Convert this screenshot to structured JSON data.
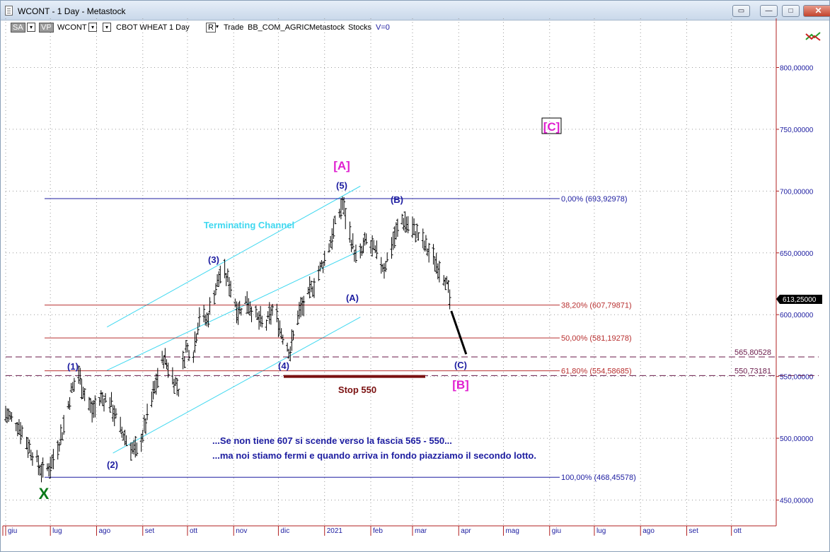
{
  "window": {
    "title": "WCONT - 1 Day - Metastock",
    "buttons": {
      "restore": "▭",
      "minimize": "—",
      "maximize": "□",
      "close": "✕"
    }
  },
  "toolbar": {
    "sa_label": "SA",
    "vp_label": "VP",
    "symbol": "WCONT",
    "name": "CBOT WHEAT",
    "period": "1 Day",
    "r_label": "R",
    "mode": "Trade",
    "list": "BB_COM_AGRIC",
    "source": "Metastock",
    "category": "Stocks",
    "v_value": "V=0"
  },
  "chart_data": {
    "type": "bar",
    "title": "",
    "y_axis": {
      "min": 430,
      "max": 850,
      "ticks": [
        "450,00000",
        "500,00000",
        "550,00000",
        "600,00000",
        "650,00000",
        "700,00000",
        "750,00000",
        "800,00000"
      ],
      "tick_values": [
        450,
        500,
        550,
        600,
        650,
        700,
        750,
        800
      ],
      "last_price_label": "613,25000",
      "last_price": 613.25
    },
    "x_axis": {
      "months": [
        "giu",
        "lug",
        "ago",
        "set",
        "ott",
        "nov",
        "dic",
        "2021",
        "feb",
        "mar",
        "apr",
        "mag",
        "giu",
        "lug",
        "ago",
        "set",
        "ott"
      ],
      "month_dates": [
        "2020-06-01",
        "2020-07-01",
        "2020-08-01",
        "2020-09-01",
        "2020-10-01",
        "2020-11-01",
        "2020-12-01",
        "2021-01-01",
        "2021-02-01",
        "2021-03-01",
        "2021-04-01",
        "2021-05-01",
        "2021-06-01",
        "2021-07-01",
        "2021-08-01",
        "2021-09-01",
        "2021-10-01"
      ],
      "start": "2020-06-01",
      "end": "2021-11-01"
    },
    "price_path": [
      [
        "2020-06-01",
        520
      ],
      [
        "2020-06-10",
        510
      ],
      [
        "2020-06-18",
        490
      ],
      [
        "2020-06-26",
        472
      ],
      [
        "2020-07-02",
        480
      ],
      [
        "2020-07-09",
        505
      ],
      [
        "2020-07-15",
        538
      ],
      [
        "2020-07-20",
        552
      ],
      [
        "2020-07-24",
        536
      ],
      [
        "2020-07-29",
        522
      ],
      [
        "2020-08-04",
        532
      ],
      [
        "2020-08-10",
        530
      ],
      [
        "2020-08-17",
        507
      ],
      [
        "2020-08-24",
        493
      ],
      [
        "2020-08-28",
        488
      ],
      [
        "2020-09-03",
        512
      ],
      [
        "2020-09-10",
        545
      ],
      [
        "2020-09-15",
        566
      ],
      [
        "2020-09-20",
        552
      ],
      [
        "2020-09-25",
        540
      ],
      [
        "2020-09-30",
        573
      ],
      [
        "2020-10-05",
        570
      ],
      [
        "2020-10-09",
        600
      ],
      [
        "2020-10-14",
        595
      ],
      [
        "2020-10-19",
        618
      ],
      [
        "2020-10-24",
        637
      ],
      [
        "2020-10-29",
        626
      ],
      [
        "2020-11-04",
        603
      ],
      [
        "2020-11-10",
        612
      ],
      [
        "2020-11-16",
        598
      ],
      [
        "2020-11-22",
        590
      ],
      [
        "2020-11-28",
        606
      ],
      [
        "2020-12-03",
        586
      ],
      [
        "2020-12-09",
        570
      ],
      [
        "2020-12-14",
        600
      ],
      [
        "2020-12-20",
        612
      ],
      [
        "2020-12-26",
        628
      ],
      [
        "2021-01-02",
        648
      ],
      [
        "2021-01-08",
        672
      ],
      [
        "2021-01-13",
        690
      ],
      [
        "2021-01-18",
        665
      ],
      [
        "2021-01-23",
        642
      ],
      [
        "2021-01-29",
        660
      ],
      [
        "2021-02-04",
        650
      ],
      [
        "2021-02-10",
        638
      ],
      [
        "2021-02-16",
        660
      ],
      [
        "2021-02-22",
        677
      ],
      [
        "2021-02-27",
        672
      ],
      [
        "2021-03-05",
        664
      ],
      [
        "2021-03-11",
        652
      ],
      [
        "2021-03-17",
        642
      ],
      [
        "2021-03-23",
        630
      ],
      [
        "2021-03-26",
        612
      ]
    ],
    "fib_levels": [
      {
        "label": "0,00% (693,92978)",
        "value": 693.92978,
        "color": "#1c1ca0"
      },
      {
        "label": "38,20% (607,79871)",
        "value": 607.79871,
        "color": "#b83030"
      },
      {
        "label": "50,00% (581,19278)",
        "value": 581.19278,
        "color": "#b83030"
      },
      {
        "label": "61,80% (554,58685)",
        "value": 554.58685,
        "color": "#b83030"
      },
      {
        "label": "100,00% (468,45578)",
        "value": 468.45578,
        "color": "#1c1ca0"
      }
    ],
    "dashed_levels": [
      {
        "label": "565,80528",
        "value": 565.80528
      },
      {
        "label": "550,73181",
        "value": 550.73181
      }
    ],
    "wave_labels": {
      "x": "X",
      "w1": "(1)",
      "w2": "(2)",
      "w3": "(3)",
      "w4": "(4)",
      "w5": "(5)",
      "a_big": "[A]",
      "a_small": "(A)",
      "b_small": "(B)",
      "c_small": "(C)",
      "b_big": "[B]",
      "c_big": "[C]"
    },
    "annotations": {
      "channel": "Terminating Channel",
      "stop": "Stop 550",
      "note1": "...Se non tiene 607 si scende verso la fascia 565 - 550...",
      "note2": "...ma noi stiamo fermi e quando arriva in fondo piazziamo il secondo lotto."
    },
    "colors": {
      "bars": "#000000",
      "channel": "#3fd8f0",
      "wave": "#1c1ca0",
      "magenta": "#e020d0",
      "x_green": "#0b7a1a",
      "stop": "#7a1010",
      "grid": "#9a9a9a",
      "axis_text": "#1c1ca0"
    }
  }
}
